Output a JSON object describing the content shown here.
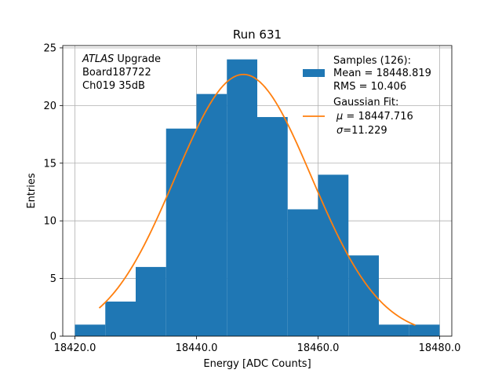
{
  "chart_data": {
    "type": "bar",
    "title": "Run 631",
    "xlabel": "Energy [ADC Counts]",
    "ylabel": "Entries",
    "xlim": [
      18418,
      18482
    ],
    "ylim": [
      0,
      25.2
    ],
    "grid": true,
    "bin_edges": [
      18420,
      18425,
      18430,
      18435,
      18440,
      18445,
      18450,
      18455,
      18460,
      18465,
      18470,
      18475,
      18480
    ],
    "values": [
      1,
      3,
      6,
      18,
      21,
      24,
      19,
      11,
      14,
      7,
      1,
      1
    ],
    "x_ticks": [
      18420,
      18440,
      18460,
      18480
    ],
    "x_tick_labels": [
      "18420.0",
      "18440.0",
      "18460.0",
      "18480.0"
    ],
    "y_ticks": [
      0,
      5,
      10,
      15,
      20,
      25
    ],
    "y_tick_labels": [
      "0",
      "5",
      "10",
      "15",
      "20",
      "25"
    ],
    "fit": {
      "amplitude": 22.7,
      "mean": 18447.716,
      "sigma": 11.229,
      "x_range": [
        18424,
        18476
      ],
      "color": "#ff7f0e"
    },
    "bar_color": "#1f77b4",
    "annotation": {
      "italic_part": "ATLAS",
      "line1_rest": " Upgrade",
      "line2": " Board187722",
      "line3": " Ch019 35dB"
    },
    "legend": {
      "position": "top-right",
      "samples_title": "Samples (126):",
      "samples_mean": " Mean = 18448.819",
      "samples_rms": " RMS = 10.406",
      "fit_title": "Gaussian Fit:",
      "fit_mu_symbol": "μ",
      "fit_mu_value": " = 18447.716",
      "fit_sigma_symbol": "σ",
      "fit_sigma_value": "=11.229"
    }
  }
}
